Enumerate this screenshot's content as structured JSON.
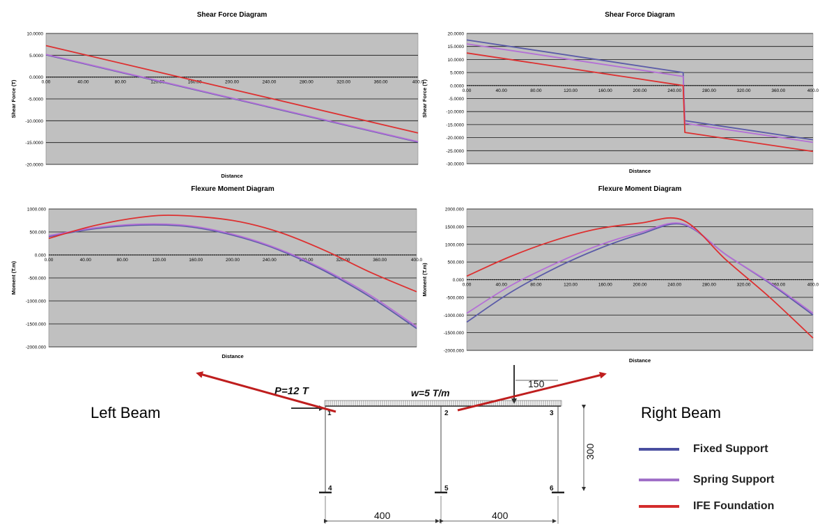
{
  "colors": {
    "fixed": "#5b5ba8",
    "spring": "#b46fd6",
    "ife": "#dd3030",
    "plot_bg": "#c0c0c0",
    "arrow": "#bf1e1e"
  },
  "beam_labels": {
    "left": "Left Beam",
    "right": "Right Beam"
  },
  "legend": [
    {
      "label": "Fixed Support",
      "color": "#4a4fa0"
    },
    {
      "label": "Spring Support",
      "color": "#a070c8"
    },
    {
      "label": "IFE Foundation",
      "color": "#d42c2c"
    }
  ],
  "frame_diagram": {
    "load_p": "P=12 T",
    "load_w": "w=5 T/m",
    "dim_top": "150",
    "dim_height": "300",
    "dim_left": "400",
    "dim_right": "400",
    "nodes": [
      "1",
      "2",
      "3",
      "4",
      "5",
      "6"
    ]
  },
  "chart_data": [
    {
      "id": "tl",
      "type": "line",
      "title": "Shear Force Diagram",
      "xlabel": "Distance",
      "ylabel": "Shear Force (T)",
      "xlim": [
        0,
        400
      ],
      "ylim": [
        -20,
        10
      ],
      "yticks": [
        10,
        5,
        0,
        -5,
        -10,
        -15,
        -20
      ],
      "ytick_labels": [
        "10.0000",
        "5.0000",
        "0.0000",
        "-5.0000",
        "-10.0000",
        "-15.0000",
        "-20.0000"
      ],
      "xticks": [
        0,
        40,
        80,
        120,
        160,
        200,
        240,
        280,
        320,
        360,
        400
      ],
      "xtick_labels": [
        "0.00",
        "40.00",
        "80.00",
        "120.00",
        "160.00",
        "200.00",
        "240.00",
        "280.00",
        "320.00",
        "360.00",
        "400.0"
      ],
      "series": [
        {
          "name": "Fixed Support",
          "colorKey": "fixed",
          "points": [
            [
              0,
              5.1
            ],
            [
              400,
              -14.9
            ]
          ]
        },
        {
          "name": "Spring Support",
          "colorKey": "spring",
          "points": [
            [
              0,
              5.2
            ],
            [
              400,
              -14.8
            ]
          ]
        },
        {
          "name": "IFE Foundation",
          "colorKey": "ife",
          "points": [
            [
              0,
              7.2
            ],
            [
              400,
              -12.8
            ]
          ]
        }
      ]
    },
    {
      "id": "tr",
      "type": "line",
      "title": "Shear Force Diagram",
      "xlabel": "Distance",
      "ylabel": "Shear Force (T)",
      "xlim": [
        0,
        400
      ],
      "ylim": [
        -30,
        20
      ],
      "yticks": [
        20,
        15,
        10,
        5,
        0,
        -5,
        -10,
        -15,
        -20,
        -25,
        -30
      ],
      "ytick_labels": [
        "20.0000",
        "15.0000",
        "10.0000",
        "5.0000",
        "0.0000",
        "-5.0000",
        "-10.0000",
        "-15.0000",
        "-20.0000",
        "-25.0000",
        "-30.0000"
      ],
      "xticks": [
        0,
        40,
        80,
        120,
        160,
        200,
        240,
        280,
        320,
        360,
        400
      ],
      "xtick_labels": [
        "0.00",
        "40.00",
        "80.00",
        "120.00",
        "160.00",
        "200.00",
        "240.00",
        "280.00",
        "320.00",
        "360.00",
        "400.0"
      ],
      "series": [
        {
          "name": "Fixed Support",
          "colorKey": "fixed",
          "points": [
            [
              0,
              17.5
            ],
            [
              250,
              5.0
            ],
            [
              252,
              -13.5
            ],
            [
              400,
              -20.8
            ]
          ]
        },
        {
          "name": "Spring Support",
          "colorKey": "spring",
          "points": [
            [
              0,
              16.0
            ],
            [
              250,
              3.5
            ],
            [
              252,
              -14.5
            ],
            [
              400,
              -21.8
            ]
          ]
        },
        {
          "name": "IFE Foundation",
          "colorKey": "ife",
          "points": [
            [
              0,
              12.5
            ],
            [
              250,
              0.0
            ],
            [
              252,
              -18.0
            ],
            [
              400,
              -25.3
            ]
          ]
        }
      ]
    },
    {
      "id": "bl",
      "type": "line",
      "title": "Flexure Moment Diagram",
      "xlabel": "Distance",
      "ylabel": "Moment (T.m)",
      "xlim": [
        0,
        400
      ],
      "ylim": [
        -2000,
        1000
      ],
      "yticks": [
        1000,
        500,
        0,
        -500,
        -1000,
        -1500,
        -2000
      ],
      "ytick_labels": [
        "1000.000",
        "500.000",
        "0.000",
        "-500.000",
        "-1000.000",
        "-1500.000",
        "-2000.000"
      ],
      "xticks": [
        0,
        40,
        80,
        120,
        160,
        200,
        240,
        280,
        320,
        360,
        400
      ],
      "xtick_labels": [
        "0.00",
        "40.00",
        "80.00",
        "120.00",
        "160.00",
        "200.00",
        "240.00",
        "280.00",
        "320.00",
        "360.00",
        "400.0"
      ],
      "series": [
        {
          "name": "Fixed Support",
          "colorKey": "fixed",
          "points": [
            [
              0,
              400
            ],
            [
              50,
              570
            ],
            [
              100,
              650
            ],
            [
              150,
              620
            ],
            [
              200,
              430
            ],
            [
              250,
              110
            ],
            [
              300,
              -350
            ],
            [
              350,
              -920
            ],
            [
              400,
              -1600
            ]
          ]
        },
        {
          "name": "Spring Support",
          "colorKey": "spring",
          "points": [
            [
              0,
              420
            ],
            [
              50,
              590
            ],
            [
              100,
              670
            ],
            [
              150,
              640
            ],
            [
              200,
              450
            ],
            [
              250,
              130
            ],
            [
              300,
              -320
            ],
            [
              350,
              -880
            ],
            [
              400,
              -1560
            ]
          ]
        },
        {
          "name": "IFE Foundation",
          "colorKey": "ife",
          "points": [
            [
              0,
              360
            ],
            [
              50,
              640
            ],
            [
              100,
              820
            ],
            [
              140,
              860
            ],
            [
              200,
              750
            ],
            [
              250,
              500
            ],
            [
              300,
              100
            ],
            [
              350,
              -380
            ],
            [
              400,
              -800
            ]
          ]
        }
      ]
    },
    {
      "id": "br",
      "type": "line",
      "title": "Flexure Moment Diagram",
      "xlabel": "Distance",
      "ylabel": "Moment (T.m)",
      "xlim": [
        0,
        400
      ],
      "ylim": [
        -2000,
        2000
      ],
      "yticks": [
        2000,
        1500,
        1000,
        500,
        0,
        -500,
        -1000,
        -1500,
        -2000
      ],
      "ytick_labels": [
        "2000.000",
        "1500.000",
        "1000.000",
        "500.000",
        "0.000",
        "-500.000",
        "-1000.000",
        "-1500.000",
        "-2000.000"
      ],
      "xticks": [
        0,
        40,
        80,
        120,
        160,
        200,
        240,
        280,
        320,
        360,
        400
      ],
      "xtick_labels": [
        "0.00",
        "40.00",
        "80.00",
        "120.00",
        "160.00",
        "200.00",
        "240.00",
        "280.00",
        "320.00",
        "360.00",
        "400.0"
      ],
      "series": [
        {
          "name": "Fixed Support",
          "colorKey": "fixed",
          "points": [
            [
              0,
              -1200
            ],
            [
              50,
              -370
            ],
            [
              100,
              300
            ],
            [
              150,
              850
            ],
            [
              200,
              1280
            ],
            [
              250,
              1560
            ],
            [
              300,
              700
            ],
            [
              350,
              -100
            ],
            [
              400,
              -1000
            ]
          ]
        },
        {
          "name": "Spring Support",
          "colorKey": "spring",
          "points": [
            [
              0,
              -950
            ],
            [
              50,
              -180
            ],
            [
              100,
              430
            ],
            [
              150,
              950
            ],
            [
              200,
              1330
            ],
            [
              250,
              1580
            ],
            [
              300,
              700
            ],
            [
              350,
              -80
            ],
            [
              400,
              -950
            ]
          ]
        },
        {
          "name": "IFE Foundation",
          "colorKey": "ife",
          "points": [
            [
              0,
              100
            ],
            [
              50,
              650
            ],
            [
              100,
              1100
            ],
            [
              150,
              1430
            ],
            [
              200,
              1600
            ],
            [
              250,
              1680
            ],
            [
              300,
              550
            ],
            [
              350,
              -500
            ],
            [
              400,
              -1650
            ]
          ]
        }
      ]
    }
  ]
}
